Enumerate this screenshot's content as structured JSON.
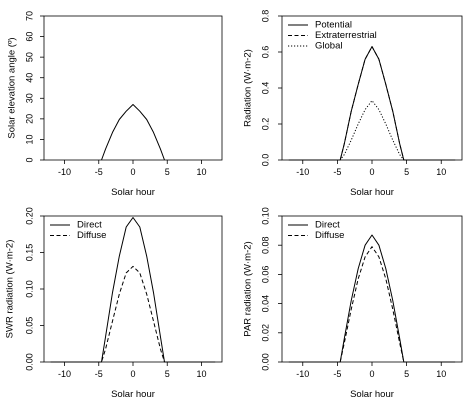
{
  "chart_data": [
    {
      "type": "line",
      "xlabel": "Solar hour",
      "ylabel": "Solar elevation angle (º)",
      "xlim": [
        -13,
        13
      ],
      "ylim": [
        0,
        70
      ],
      "xticks": [
        -10,
        -5,
        0,
        5,
        10
      ],
      "yticks": [
        0,
        10,
        20,
        30,
        40,
        50,
        60,
        70
      ],
      "ytick_labels": [
        "0",
        "10",
        "20",
        "30",
        "40",
        "50",
        "60",
        "70"
      ],
      "legend": null,
      "series": [
        {
          "linestyle": "solid",
          "x": [
            -4.6,
            -4,
            -3,
            -2,
            -1,
            0,
            1,
            2,
            3,
            4,
            4.6
          ],
          "y": [
            0,
            5.4,
            13.4,
            19.7,
            23.7,
            27.0,
            23.7,
            19.7,
            13.4,
            5.4,
            0
          ]
        }
      ]
    },
    {
      "type": "line",
      "xlabel": "Solar hour",
      "ylabel": "Radiation (W·m-2)",
      "xlim": [
        -13,
        13
      ],
      "ylim": [
        0,
        0.8
      ],
      "xticks": [
        -10,
        -5,
        0,
        5,
        10
      ],
      "yticks": [
        0,
        0.2,
        0.4,
        0.6,
        0.8
      ],
      "ytick_labels": [
        "0.0",
        "0.2",
        "0.4",
        "0.6",
        "0.8"
      ],
      "legend": "top-left",
      "series": [
        {
          "name": "Potential",
          "linestyle": "solid",
          "x": [
            -12,
            -4.6,
            -4,
            -3,
            -2,
            -1,
            0,
            1,
            2,
            3,
            4,
            4.6,
            12
          ],
          "y": [
            0,
            0,
            0.09,
            0.27,
            0.42,
            0.56,
            0.63,
            0.56,
            0.42,
            0.27,
            0.09,
            0,
            0
          ]
        },
        {
          "name": "Extraterrestrial",
          "linestyle": "dashed",
          "x": [
            -12,
            -4.6,
            -4,
            -3,
            -2,
            -1,
            0,
            1,
            2,
            3,
            4,
            4.6,
            12
          ],
          "y": [
            0,
            0,
            0.09,
            0.27,
            0.42,
            0.56,
            0.63,
            0.56,
            0.42,
            0.27,
            0.09,
            0,
            0
          ]
        },
        {
          "name": "Global",
          "linestyle": "dotted",
          "x": [
            -12,
            -4.6,
            -4,
            -3,
            -2,
            -1,
            0,
            1,
            2,
            3,
            4,
            4.6,
            12
          ],
          "y": [
            0,
            0,
            0.03,
            0.11,
            0.2,
            0.28,
            0.33,
            0.28,
            0.2,
            0.11,
            0.03,
            0,
            0
          ]
        }
      ]
    },
    {
      "type": "line",
      "xlabel": "Solar hour",
      "ylabel": "SWR radiation (W·m-2)",
      "xlim": [
        -13,
        13
      ],
      "ylim": [
        0,
        0.2
      ],
      "xticks": [
        -10,
        -5,
        0,
        5,
        10
      ],
      "yticks": [
        0,
        0.05,
        0.1,
        0.15,
        0.2
      ],
      "ytick_labels": [
        "0.00",
        "0.05",
        "0.10",
        "0.15",
        "0.20"
      ],
      "legend": "top-left",
      "series": [
        {
          "name": "Direct",
          "linestyle": "solid",
          "x": [
            -12,
            -4.6,
            -4,
            -3,
            -2,
            -1,
            0,
            1,
            2,
            3,
            4,
            4.6,
            12
          ],
          "y": [
            0,
            0,
            0.035,
            0.095,
            0.145,
            0.185,
            0.198,
            0.185,
            0.145,
            0.095,
            0.035,
            0,
            0
          ]
        },
        {
          "name": "Diffuse",
          "linestyle": "dashed",
          "x": [
            -12,
            -4.6,
            -4,
            -3,
            -2,
            -1,
            0,
            1,
            2,
            3,
            4,
            4.6,
            12
          ],
          "y": [
            0,
            0,
            0.018,
            0.056,
            0.093,
            0.122,
            0.131,
            0.122,
            0.093,
            0.056,
            0.018,
            0,
            0
          ]
        }
      ]
    },
    {
      "type": "line",
      "xlabel": "Solar hour",
      "ylabel": "PAR radiation (W·m-2)",
      "xlim": [
        -13,
        13
      ],
      "ylim": [
        0,
        0.1
      ],
      "xticks": [
        -10,
        -5,
        0,
        5,
        10
      ],
      "yticks": [
        0,
        0.02,
        0.04,
        0.06,
        0.08,
        0.1
      ],
      "ytick_labels": [
        "0.00",
        "0.02",
        "0.04",
        "0.06",
        "0.08",
        "0.10"
      ],
      "legend": "top-left",
      "series": [
        {
          "name": "Direct",
          "linestyle": "solid",
          "x": [
            -12,
            -4.6,
            -4,
            -3,
            -2,
            -1,
            0,
            1,
            2,
            3,
            4,
            4.6,
            12
          ],
          "y": [
            0,
            0,
            0.016,
            0.042,
            0.064,
            0.08,
            0.087,
            0.08,
            0.064,
            0.042,
            0.016,
            0,
            0
          ]
        },
        {
          "name": "Diffuse",
          "linestyle": "dashed",
          "x": [
            -12,
            -4.6,
            -4,
            -3,
            -2,
            -1,
            0,
            1,
            2,
            3,
            4,
            4.6,
            12
          ],
          "y": [
            0,
            0,
            0.013,
            0.036,
            0.057,
            0.072,
            0.079,
            0.072,
            0.057,
            0.036,
            0.013,
            0,
            0
          ]
        }
      ]
    }
  ]
}
